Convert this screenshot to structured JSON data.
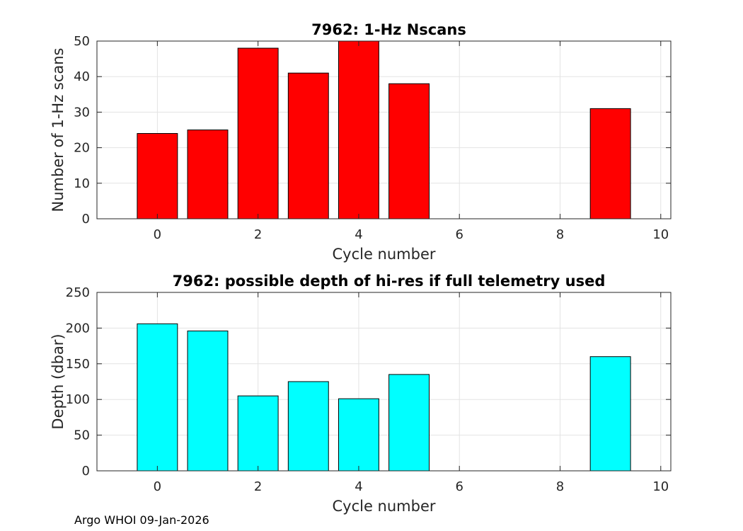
{
  "chart_data": [
    {
      "type": "bar",
      "title": "7962: 1-Hz Nscans",
      "xlabel": "Cycle number",
      "ylabel": "Number of 1-Hz scans",
      "x": [
        0,
        1,
        2,
        3,
        4,
        5,
        9
      ],
      "values": [
        24,
        25,
        48,
        41,
        50,
        38,
        31
      ],
      "xlim": [
        -1.2,
        10.2
      ],
      "ylim": [
        0,
        50
      ],
      "xticks": [
        0,
        2,
        4,
        6,
        8,
        10
      ],
      "yticks": [
        0,
        10,
        20,
        30,
        40,
        50
      ],
      "bar_color": "#ff0000",
      "grid": true
    },
    {
      "type": "bar",
      "title": "7962: possible depth of hi-res if full telemetry used",
      "xlabel": "Cycle number",
      "ylabel": "Depth (dbar)",
      "x": [
        0,
        1,
        2,
        3,
        4,
        5,
        9
      ],
      "values": [
        206,
        196,
        105,
        125,
        101,
        135,
        160
      ],
      "xlim": [
        -1.2,
        10.2
      ],
      "ylim": [
        0,
        250
      ],
      "xticks": [
        0,
        2,
        4,
        6,
        8,
        10
      ],
      "yticks": [
        0,
        50,
        100,
        150,
        200,
        250
      ],
      "bar_color": "#00ffff",
      "grid": true
    }
  ],
  "footer": "Argo WHOI 09-Jan-2026"
}
